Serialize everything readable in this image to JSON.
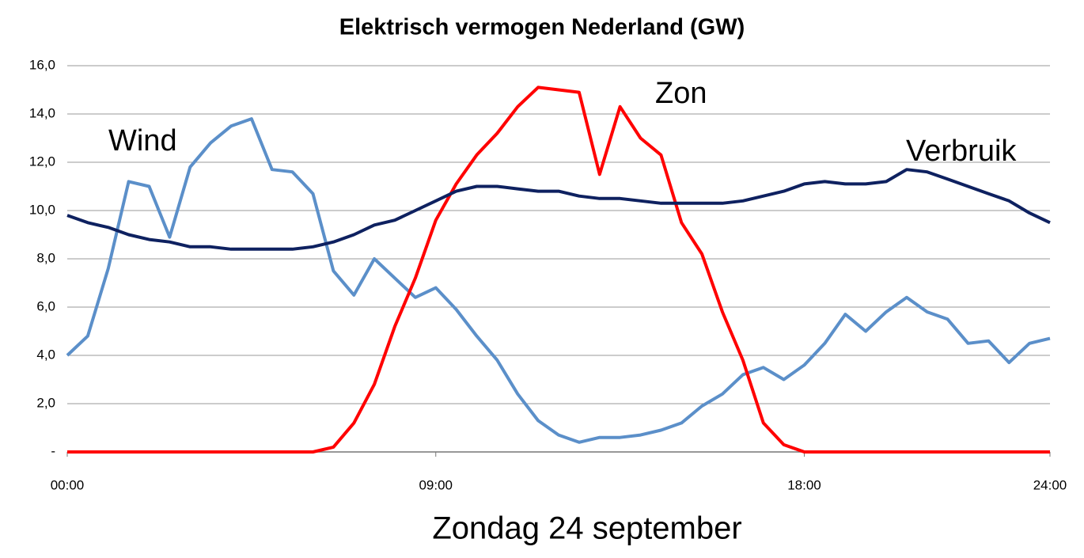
{
  "chart_data": {
    "type": "line",
    "title": "Elektrisch vermogen Nederland (GW)",
    "xlabel": "Zondag 24 september",
    "x": [
      0,
      0.5,
      1,
      1.5,
      2,
      2.5,
      3,
      3.5,
      4,
      4.5,
      5,
      5.5,
      6,
      6.5,
      7,
      7.5,
      8,
      8.5,
      9,
      9.5,
      10,
      10.5,
      11,
      11.5,
      12,
      12.5,
      13,
      13.5,
      14,
      14.5,
      15,
      15.5,
      16,
      16.5,
      17,
      17.5,
      18,
      18.5,
      19,
      19.5,
      20,
      20.5,
      21,
      21.5,
      22,
      22.5,
      23,
      23.5,
      24
    ],
    "series": [
      {
        "name": "Wind",
        "color": "#5b8fc9",
        "values": [
          4.0,
          4.8,
          7.6,
          11.2,
          11.0,
          8.9,
          11.8,
          12.8,
          13.5,
          13.8,
          11.7,
          11.6,
          10.7,
          7.5,
          6.5,
          8.0,
          7.2,
          6.4,
          6.8,
          5.9,
          4.8,
          3.8,
          2.4,
          1.3,
          0.7,
          0.4,
          0.6,
          0.6,
          0.7,
          0.9,
          1.2,
          1.9,
          2.4,
          3.2,
          3.5,
          3.0,
          3.6,
          4.5,
          5.7,
          5.0,
          5.8,
          6.4,
          5.8,
          5.5,
          4.5,
          4.6,
          3.7,
          4.5,
          4.7
        ]
      },
      {
        "name": "Zon",
        "color": "#ff0000",
        "values": [
          0,
          0,
          0,
          0,
          0,
          0,
          0,
          0,
          0,
          0,
          0,
          0,
          0,
          0.2,
          1.2,
          2.8,
          5.2,
          7.2,
          9.6,
          11.1,
          12.3,
          13.2,
          14.3,
          15.1,
          15.0,
          14.9,
          11.5,
          14.3,
          13.0,
          12.3,
          9.5,
          8.2,
          5.8,
          3.8,
          1.2,
          0.3,
          0,
          0,
          0,
          0,
          0,
          0,
          0,
          0,
          0,
          0,
          0,
          0,
          0
        ]
      },
      {
        "name": "Verbruik",
        "color": "#0e2160",
        "values": [
          9.8,
          9.5,
          9.3,
          9.0,
          8.8,
          8.7,
          8.5,
          8.5,
          8.4,
          8.4,
          8.4,
          8.4,
          8.5,
          8.7,
          9.0,
          9.4,
          9.6,
          10.0,
          10.4,
          10.8,
          11.0,
          11.0,
          10.9,
          10.8,
          10.8,
          10.6,
          10.5,
          10.5,
          10.4,
          10.3,
          10.3,
          10.3,
          10.3,
          10.4,
          10.6,
          10.8,
          11.1,
          11.2,
          11.1,
          11.1,
          11.2,
          11.7,
          11.6,
          11.3,
          11.0,
          10.7,
          10.4,
          9.9,
          9.5
        ]
      }
    ],
    "xlim": [
      0,
      24
    ],
    "xticks": [
      {
        "value": 0,
        "label": "00:00"
      },
      {
        "value": 9,
        "label": "09:00"
      },
      {
        "value": 18,
        "label": "18:00"
      },
      {
        "value": 24,
        "label": "24:00"
      }
    ],
    "ylim": [
      0,
      16
    ],
    "yticks": [
      {
        "value": 0,
        "label": "-"
      },
      {
        "value": 2,
        "label": "2,0"
      },
      {
        "value": 4,
        "label": "4,0"
      },
      {
        "value": 6,
        "label": "6,0"
      },
      {
        "value": 8,
        "label": "8,0"
      },
      {
        "value": 10,
        "label": "10,0"
      },
      {
        "value": 12,
        "label": "12,0"
      },
      {
        "value": 14,
        "label": "14,0"
      },
      {
        "value": 16,
        "label": "16,0"
      }
    ],
    "grid": true
  }
}
